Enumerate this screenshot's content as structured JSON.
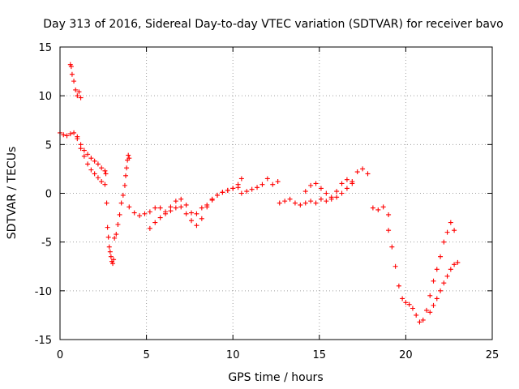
{
  "chart_data": {
    "type": "scatter",
    "title": "Day 313 of 2016, Sidereal Day-to-day VTEC variation (SDTVAR) for receiver bavo",
    "xlabel": "GPS time / hours",
    "ylabel": "SDTVAR / TECUs",
    "xlim": [
      0,
      25
    ],
    "ylim": [
      -15,
      15
    ],
    "xticks": [
      "0",
      "5",
      "10",
      "15",
      "20",
      "25"
    ],
    "yticks": [
      "-15",
      "-10",
      "-5",
      "0",
      "5",
      "10",
      "15"
    ],
    "marker": "+",
    "color": "#ff0000",
    "grid": true,
    "series": [
      {
        "name": "a",
        "x": [
          0.0,
          0.2,
          0.4,
          0.6,
          0.8,
          1.0,
          1.2,
          1.4,
          1.6,
          1.8,
          2.0,
          2.2,
          2.4,
          2.6
        ],
        "y": [
          6.2,
          6.0,
          5.9,
          6.1,
          6.2,
          5.8,
          5.0,
          4.4,
          4.0,
          3.6,
          3.3,
          3.0,
          2.6,
          2.3
        ]
      },
      {
        "name": "b",
        "x": [
          0.6,
          0.65,
          0.7,
          0.8,
          0.9,
          1.0,
          1.1,
          1.2
        ],
        "y": [
          13.2,
          13.0,
          12.2,
          11.5,
          10.6,
          10.0,
          10.4,
          9.8
        ]
      },
      {
        "name": "c",
        "x": [
          1.0,
          1.2,
          1.4,
          1.6,
          1.8,
          2.0,
          2.2,
          2.4,
          2.6
        ],
        "y": [
          5.6,
          4.6,
          3.8,
          3.0,
          2.4,
          2.0,
          1.6,
          1.2,
          0.9
        ]
      },
      {
        "name": "d",
        "x": [
          2.65,
          2.7,
          2.75,
          2.8,
          2.85,
          2.9,
          2.95,
          3.0,
          3.05,
          3.1
        ],
        "y": [
          2.0,
          -1.0,
          -3.5,
          -4.5,
          -5.5,
          -6.0,
          -6.5,
          -7.0,
          -7.2,
          -6.8
        ]
      },
      {
        "name": "e",
        "x": [
          3.15,
          3.25,
          3.35,
          3.45,
          3.55,
          3.65,
          3.75,
          3.8,
          3.85,
          3.9,
          3.95,
          4.0
        ],
        "y": [
          -4.6,
          -4.2,
          -3.2,
          -2.2,
          -1.0,
          -0.2,
          0.8,
          1.8,
          2.6,
          3.4,
          3.9,
          3.6
        ]
      },
      {
        "name": "f",
        "x": [
          4.0,
          4.3,
          4.6,
          4.9,
          5.2,
          5.5,
          5.8,
          6.1,
          6.4,
          6.7,
          7.0,
          7.3,
          7.6,
          7.9,
          8.2,
          8.5,
          8.8,
          9.1,
          9.4,
          9.7,
          10.0,
          10.3,
          10.5
        ],
        "y": [
          -1.4,
          -2.0,
          -2.3,
          -2.1,
          -1.9,
          -1.5,
          -1.5,
          -1.9,
          -1.4,
          -0.8,
          -0.6,
          -1.2,
          -2.0,
          -2.1,
          -1.5,
          -1.2,
          -0.6,
          -0.2,
          0.1,
          0.3,
          0.5,
          0.9,
          1.5
        ]
      },
      {
        "name": "g",
        "x": [
          5.2,
          5.5,
          5.8,
          6.1,
          6.4,
          6.7,
          7.0,
          7.3,
          7.6,
          7.9,
          8.2,
          8.5,
          8.8,
          9.1,
          9.4,
          9.7,
          10.0,
          10.3
        ],
        "y": [
          -3.6,
          -3.0,
          -2.5,
          -2.1,
          -1.8,
          -1.5,
          -1.4,
          -2.1,
          -2.8,
          -3.3,
          -2.6,
          -1.4,
          -0.7,
          -0.2,
          0.1,
          0.3,
          0.5,
          0.6
        ]
      },
      {
        "name": "h",
        "x": [
          10.5,
          10.8,
          11.1,
          11.4,
          11.7,
          12.0,
          12.3,
          12.6
        ],
        "y": [
          0.0,
          0.2,
          0.4,
          0.6,
          0.9,
          1.5,
          0.9,
          1.2
        ]
      },
      {
        "name": "i",
        "x": [
          12.7,
          13.0,
          13.3,
          13.6,
          13.9,
          14.2,
          14.5,
          14.8,
          15.1,
          15.4,
          15.7,
          16.0,
          16.3,
          16.6,
          16.9,
          17.2,
          17.5,
          17.8,
          18.1,
          18.4,
          18.7,
          19.0
        ],
        "y": [
          -1.0,
          -0.8,
          -0.6,
          -1.0,
          -1.2,
          -1.0,
          -0.8,
          -1.0,
          -0.6,
          -0.8,
          -0.4,
          0.2,
          1.0,
          1.4,
          1.2,
          2.2,
          2.5,
          2.0,
          -1.5,
          -1.7,
          -1.4,
          -2.2
        ]
      },
      {
        "name": "j",
        "x": [
          14.2,
          14.5,
          14.8,
          15.1,
          15.4,
          15.7,
          16.0,
          16.3,
          16.6,
          16.9
        ],
        "y": [
          0.2,
          0.8,
          1.0,
          0.5,
          0.0,
          -0.6,
          -0.4,
          0.0,
          0.5,
          1.0
        ]
      },
      {
        "name": "k",
        "x": [
          19.0,
          19.2,
          19.4,
          19.6,
          19.8,
          20.0,
          20.2,
          20.4,
          20.6,
          20.8,
          21.0,
          21.2,
          21.4,
          21.6,
          21.8,
          22.0,
          22.2,
          22.4,
          22.6,
          22.8
        ],
        "y": [
          -3.8,
          -5.5,
          -7.5,
          -9.5,
          -10.8,
          -11.2,
          -11.4,
          -11.8,
          -12.5,
          -13.2,
          -13.0,
          -12.0,
          -10.5,
          -9.0,
          -7.8,
          -6.5,
          -5.0,
          -4.0,
          -3.0,
          -3.8
        ]
      },
      {
        "name": "l",
        "x": [
          21.4,
          21.6,
          21.8,
          22.0,
          22.2,
          22.4,
          22.6,
          22.8,
          23.0
        ],
        "y": [
          -12.2,
          -11.5,
          -10.8,
          -10.0,
          -9.2,
          -8.5,
          -7.8,
          -7.3,
          -7.1
        ]
      }
    ]
  }
}
